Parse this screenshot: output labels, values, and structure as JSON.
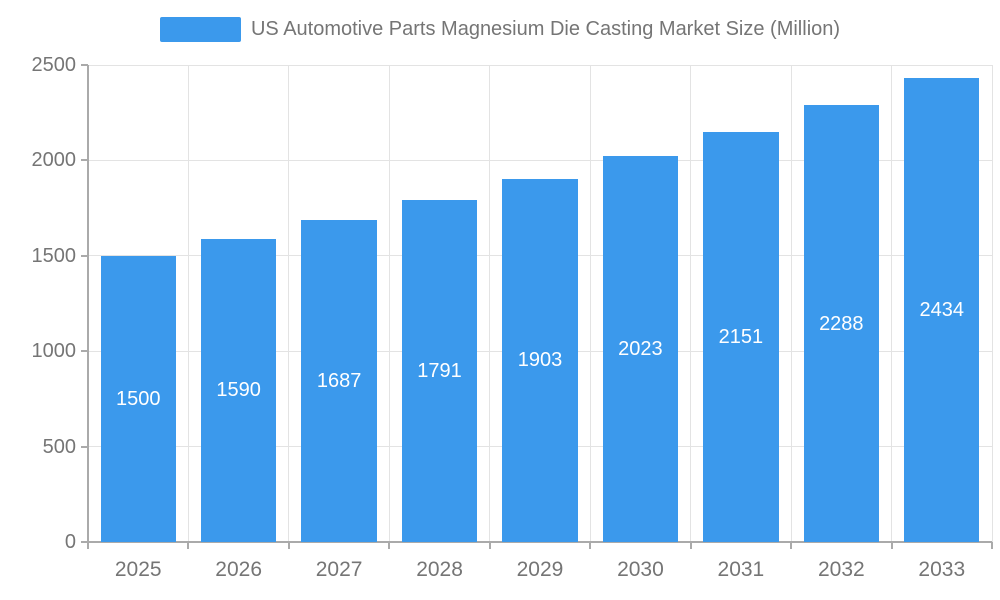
{
  "legend": {
    "label": "US Automotive Parts Magnesium Die Casting Market Size (Million)"
  },
  "chart_data": {
    "type": "bar",
    "title": "US Automotive Parts Magnesium Die Casting Market Size (Million)",
    "categories": [
      "2025",
      "2026",
      "2027",
      "2028",
      "2029",
      "2030",
      "2031",
      "2032",
      "2033"
    ],
    "values": [
      1500,
      1590,
      1687,
      1791,
      1903,
      2023,
      2151,
      2288,
      2434
    ],
    "xlabel": "",
    "ylabel": "",
    "ylim": [
      0,
      2500
    ],
    "yticks": [
      0,
      500,
      1000,
      1500,
      2000,
      2500
    ],
    "grid": true,
    "legend_position": "top",
    "bar_width_fraction": 0.75,
    "colors": {
      "bar": "#3b99ec",
      "grid_line": "#e3e3e3",
      "axis_line": "#aaaaaa",
      "tick_text": "#757575",
      "value_label": "#ffffff"
    }
  }
}
